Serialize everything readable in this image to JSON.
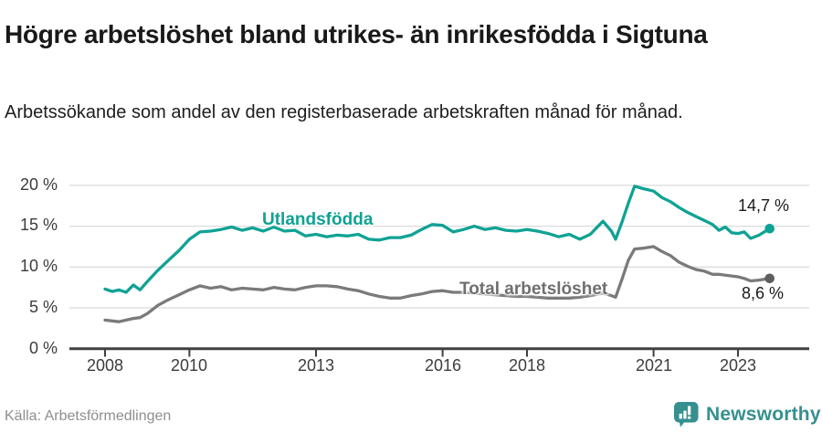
{
  "page": {
    "title": "Högre arbetslöshet bland utrikes- än inrikesfödda i Sigtuna",
    "subtitle": "Arbetssökande som andel av den registerbaserade arbetskraften månad för månad.",
    "source": "Källa: Arbetsförmedlingen",
    "brand": "Newsworthy"
  },
  "colors": {
    "accent_teal": "#0FA294",
    "brand_teal": "#35908F",
    "gray_line": "#7A7A7A",
    "gray_dot": "#5E5E5E",
    "grid": "#DBDBDB",
    "axis": "#404040",
    "title_text": "#191919",
    "tick_text": "#3C3C3C",
    "source_text": "#8E8E8E"
  },
  "chart_data": {
    "type": "line",
    "title": "Högre arbetslöshet bland utrikes- än inrikesfödda i Sigtuna",
    "xlabel": "",
    "ylabel": "Arbetssökande som andel av den registerbaserade arbetskraften (%)",
    "ylim": [
      0,
      21
    ],
    "grid": "horizontal",
    "legend_position": "inline-labels",
    "x_unit": "decimal year, monthly data 2008–2023",
    "x": [
      2008.0,
      2008.17,
      2008.33,
      2008.5,
      2008.67,
      2008.83,
      2009.0,
      2009.25,
      2009.5,
      2009.75,
      2010.0,
      2010.25,
      2010.5,
      2010.75,
      2011.0,
      2011.25,
      2011.5,
      2011.75,
      2012.0,
      2012.25,
      2012.5,
      2012.75,
      2013.0,
      2013.25,
      2013.5,
      2013.75,
      2014.0,
      2014.25,
      2014.5,
      2014.75,
      2015.0,
      2015.25,
      2015.5,
      2015.75,
      2016.0,
      2016.25,
      2016.5,
      2016.75,
      2017.0,
      2017.25,
      2017.5,
      2017.75,
      2018.0,
      2018.25,
      2018.5,
      2018.75,
      2019.0,
      2019.25,
      2019.5,
      2019.8,
      2020.0,
      2020.1,
      2020.25,
      2020.4,
      2020.55,
      2020.75,
      2021.0,
      2021.2,
      2021.4,
      2021.6,
      2021.8,
      2022.0,
      2022.2,
      2022.4,
      2022.55,
      2022.7,
      2022.85,
      2023.0,
      2023.15,
      2023.3,
      2023.5,
      2023.75
    ],
    "series": [
      {
        "name": "Utlandsfödda",
        "color": "#0FA294",
        "dot_color": "#0FA294",
        "end_label": "14,7 %",
        "end_value": 14.7,
        "values": [
          7.3,
          7.0,
          7.2,
          6.9,
          7.8,
          7.2,
          8.2,
          9.6,
          10.8,
          12.0,
          13.4,
          14.3,
          14.4,
          14.6,
          14.9,
          14.5,
          14.8,
          14.4,
          14.9,
          14.4,
          14.5,
          13.8,
          14.0,
          13.7,
          13.9,
          13.8,
          14.0,
          13.4,
          13.3,
          13.6,
          13.6,
          13.9,
          14.6,
          15.2,
          15.1,
          14.3,
          14.6,
          15.0,
          14.6,
          14.8,
          14.5,
          14.4,
          14.6,
          14.4,
          14.1,
          13.7,
          14.0,
          13.4,
          14.0,
          15.6,
          14.4,
          13.4,
          15.5,
          17.8,
          19.9,
          19.6,
          19.3,
          18.5,
          18.0,
          17.3,
          16.7,
          16.2,
          15.7,
          15.2,
          14.5,
          14.9,
          14.2,
          14.1,
          14.3,
          13.5,
          13.9,
          14.7
        ]
      },
      {
        "name": "Total arbetslöshet",
        "color": "#7A7A7A",
        "dot_color": "#5E5E5E",
        "end_label": "8,6 %",
        "end_value": 8.6,
        "values": [
          3.5,
          3.4,
          3.3,
          3.5,
          3.7,
          3.8,
          4.3,
          5.3,
          6.0,
          6.6,
          7.2,
          7.7,
          7.4,
          7.6,
          7.2,
          7.4,
          7.3,
          7.2,
          7.5,
          7.3,
          7.2,
          7.5,
          7.7,
          7.7,
          7.6,
          7.3,
          7.1,
          6.7,
          6.4,
          6.2,
          6.2,
          6.5,
          6.7,
          7.0,
          7.1,
          6.9,
          6.9,
          6.8,
          6.7,
          6.6,
          6.5,
          6.4,
          6.4,
          6.3,
          6.2,
          6.2,
          6.2,
          6.3,
          6.5,
          6.8,
          6.5,
          6.3,
          8.5,
          10.8,
          12.2,
          12.3,
          12.5,
          11.9,
          11.4,
          10.6,
          10.1,
          9.7,
          9.5,
          9.1,
          9.1,
          9.0,
          8.9,
          8.8,
          8.6,
          8.3,
          8.4,
          8.6
        ]
      }
    ],
    "y_ticks": [
      {
        "label": "20 %",
        "value": 20
      },
      {
        "label": "15 %",
        "value": 15
      },
      {
        "label": "10 %",
        "value": 10
      },
      {
        "label": "5 %",
        "value": 5
      },
      {
        "label": "0 %",
        "value": 0
      }
    ],
    "x_ticks": [
      {
        "label": "2008",
        "value": 2008
      },
      {
        "label": "2010",
        "value": 2010
      },
      {
        "label": "2013",
        "value": 2013
      },
      {
        "label": "2016",
        "value": 2016
      },
      {
        "label": "2018",
        "value": 2018
      },
      {
        "label": "2021",
        "value": 2021
      },
      {
        "label": "2023",
        "value": 2023
      }
    ]
  }
}
